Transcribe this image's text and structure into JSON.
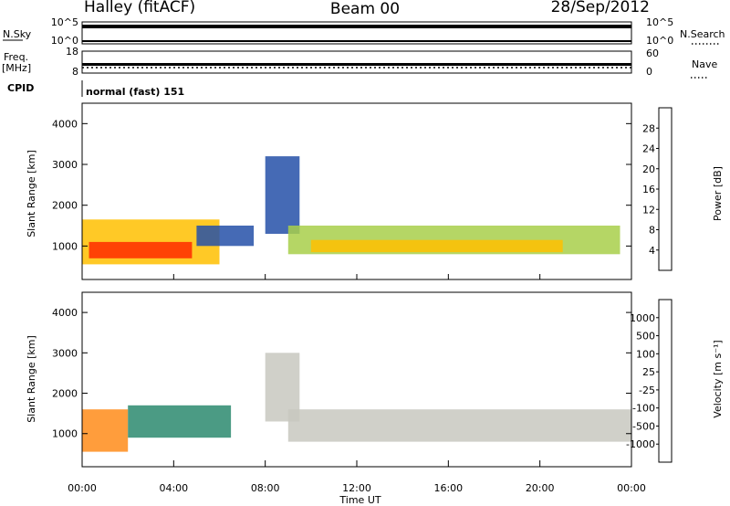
{
  "header": {
    "station": "Halley (fitACF)",
    "beam": "Beam 00",
    "date": "28/Sep/2012"
  },
  "nsky_panel": {
    "left_label": "N.Sky",
    "right_label": "N.Search",
    "left_ticks": [
      "10^5",
      "10^0"
    ],
    "right_ticks": [
      "10^5",
      "10^0"
    ]
  },
  "freq_panel": {
    "left_label_top": "Freq.",
    "left_label_bottom": "[MHz]",
    "right_label": "Nave",
    "left_ticks": [
      "18",
      "8"
    ],
    "right_ticks": [
      "60",
      "0"
    ]
  },
  "cpid_panel": {
    "label": "CPID",
    "text": "normal (fast) 151"
  },
  "power_panel": {
    "ylabel": "Slant Range [km]",
    "yticks": [
      "4000",
      "3000",
      "2000",
      "1000"
    ],
    "colorbar_label": "Power [dB]",
    "colorbar_ticks": [
      "28",
      "24",
      "20",
      "16",
      "12",
      "8",
      "4"
    ],
    "colorbar_colors": [
      "#d40000",
      "#ff2a00",
      "#ff7a00",
      "#ffc000",
      "#a8cf4a",
      "#3c8c6e",
      "#2450a8",
      "#1414e6"
    ]
  },
  "velocity_panel": {
    "ylabel": "Slant Range [km]",
    "yticks": [
      "4000",
      "3000",
      "2000",
      "1000"
    ],
    "colorbar_label": "Velocity [m s⁻¹]",
    "colorbar_ticks": [
      "1000",
      "500",
      "100",
      "25",
      "-25",
      "-100",
      "-500",
      "-1000"
    ],
    "colorbar_colors": [
      "#1a2aa6",
      "#2e6eb0",
      "#2c8a6e",
      "#6ac83a",
      "#c8c8c0",
      "#ffc000",
      "#ff8c1a",
      "#ff3c1a",
      "#e60000"
    ]
  },
  "xaxis": {
    "label": "Time UT",
    "ticks": [
      "00:00",
      "04:00",
      "08:00",
      "12:00",
      "16:00",
      "20:00",
      "00:00"
    ]
  },
  "chart_data": {
    "type": "heatmap",
    "title": "Halley (fitACF)",
    "xlabel": "Time UT",
    "ylabel": "Slant Range [km]",
    "xlim": [
      "00:00",
      "24:00"
    ],
    "ylim": [
      180,
      4500
    ],
    "panels": [
      {
        "name": "Power",
        "unit": "dB",
        "colorbar_range": [
          0,
          32
        ],
        "regions": [
          {
            "t_start": 0.0,
            "t_end": 6.0,
            "r_min": 550,
            "r_max": 1650,
            "power_db": 20
          },
          {
            "t_start": 0.3,
            "t_end": 4.8,
            "r_min": 700,
            "r_max": 1100,
            "power_db": 28
          },
          {
            "t_start": 5.0,
            "t_end": 7.5,
            "r_min": 1000,
            "r_max": 1500,
            "power_db": 6
          },
          {
            "t_start": 8.0,
            "t_end": 9.5,
            "r_min": 1300,
            "r_max": 3200,
            "power_db": 6
          },
          {
            "t_start": 9.0,
            "t_end": 23.5,
            "r_min": 800,
            "r_max": 1500,
            "power_db": 12
          },
          {
            "t_start": 10.0,
            "t_end": 21.0,
            "r_min": 850,
            "r_max": 1150,
            "power_db": 20
          }
        ]
      },
      {
        "name": "Velocity",
        "unit": "m s-1",
        "colorbar_range": [
          -1000,
          1000
        ],
        "regions": [
          {
            "t_start": 0.0,
            "t_end": 2.0,
            "r_min": 550,
            "r_max": 1600,
            "velocity": -100
          },
          {
            "t_start": 2.0,
            "t_end": 6.5,
            "r_min": 900,
            "r_max": 1700,
            "velocity": 100
          },
          {
            "t_start": 8.0,
            "t_end": 9.5,
            "r_min": 1300,
            "r_max": 3000,
            "velocity": 0
          },
          {
            "t_start": 9.0,
            "t_end": 24.0,
            "r_min": 800,
            "r_max": 1600,
            "velocity": 0
          }
        ]
      }
    ]
  }
}
